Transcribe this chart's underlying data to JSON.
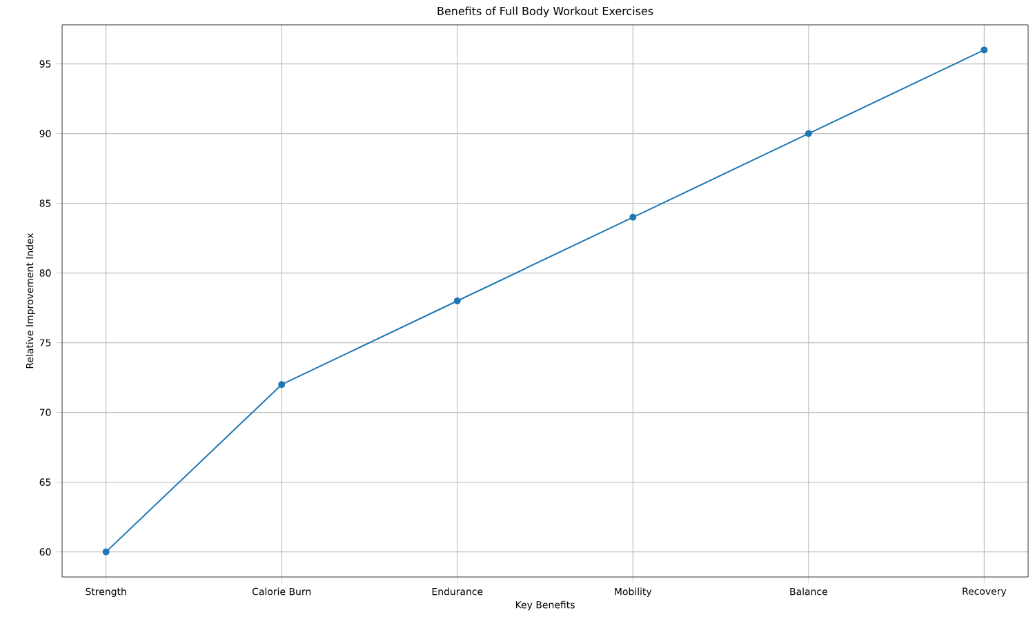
{
  "chart_data": {
    "type": "line",
    "title": "Benefits of Full Body Workout Exercises",
    "xlabel": "Key Benefits",
    "ylabel": "Relative Improvement Index",
    "categories": [
      "Strength",
      "Calorie Burn",
      "Endurance",
      "Mobility",
      "Balance",
      "Recovery"
    ],
    "series": [
      {
        "color": "#1f77b4",
        "values": [
          60,
          72,
          78,
          84,
          90,
          96
        ]
      }
    ],
    "ylim": [
      58.2,
      97.8
    ],
    "yticks": [
      60,
      65,
      70,
      75,
      80,
      85,
      90,
      95
    ],
    "grid": true,
    "marker": "circle",
    "line_style": "solid"
  }
}
